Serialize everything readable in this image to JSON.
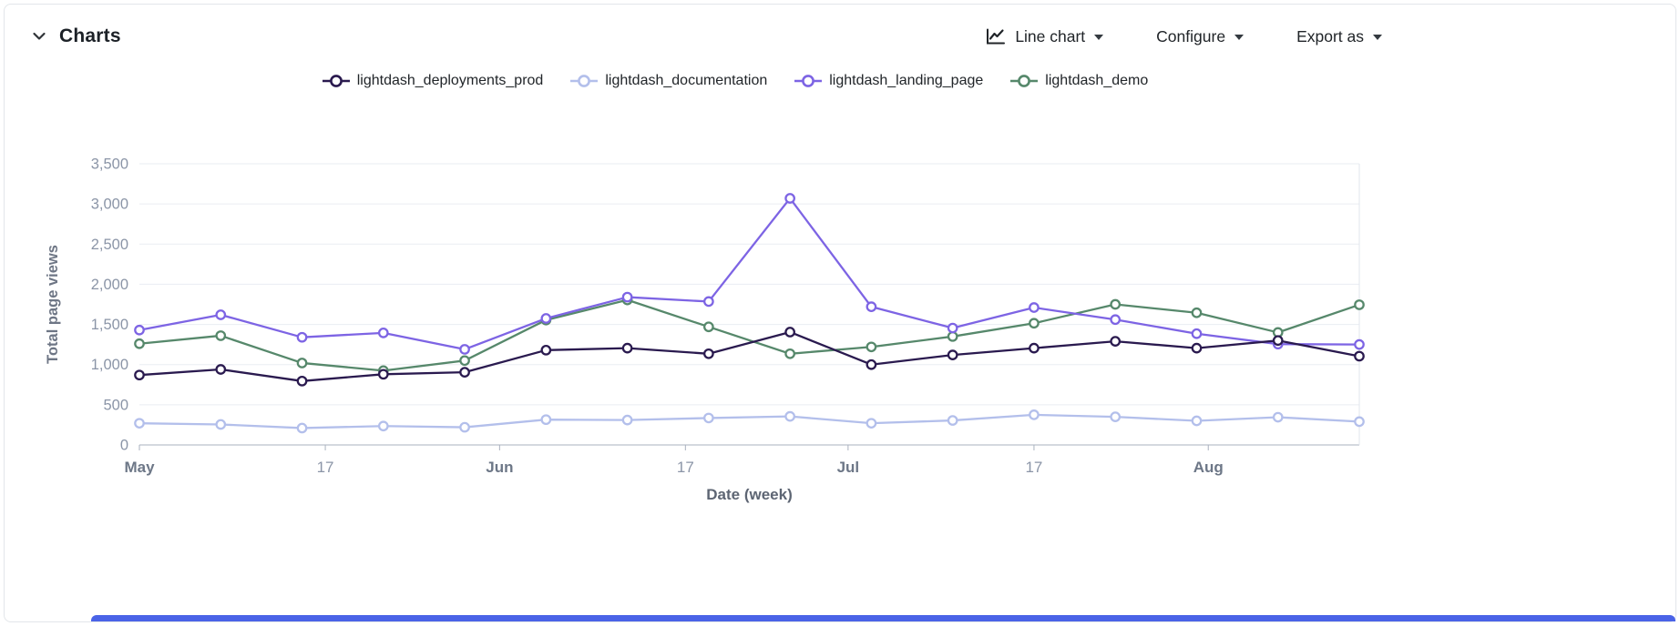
{
  "panel": {
    "title": "Charts",
    "toolbar": {
      "chart_type_label": "Line chart",
      "configure_label": "Configure",
      "export_label": "Export as"
    }
  },
  "chart_data": {
    "type": "line",
    "title": "",
    "xlabel": "Date (week)",
    "ylabel": "Total page views",
    "ylim": [
      0,
      3500
    ],
    "grid": true,
    "legend_position": "top",
    "y_ticks": [
      0,
      500,
      1000,
      1500,
      2000,
      2500,
      3000,
      3500
    ],
    "x_ticks": [
      {
        "label": "May",
        "pos": 0,
        "bold": true
      },
      {
        "label": "17",
        "pos": 2.286,
        "bold": false
      },
      {
        "label": "Jun",
        "pos": 4.429,
        "bold": true
      },
      {
        "label": "17",
        "pos": 6.714,
        "bold": false
      },
      {
        "label": "Jul",
        "pos": 8.714,
        "bold": true
      },
      {
        "label": "17",
        "pos": 11.0,
        "bold": false
      },
      {
        "label": "Aug",
        "pos": 13.143,
        "bold": true
      }
    ],
    "x_unit": "week-index",
    "series": [
      {
        "name": "lightdash_deployments_prod",
        "color": "#2a1a4f",
        "values": [
          870,
          940,
          795,
          880,
          905,
          1180,
          1205,
          1135,
          1405,
          1000,
          1120,
          1205,
          1290,
          1205,
          1300,
          1105
        ]
      },
      {
        "name": "lightdash_documentation",
        "color": "#b3bfeb",
        "values": [
          270,
          255,
          210,
          235,
          220,
          315,
          310,
          335,
          355,
          270,
          305,
          375,
          350,
          300,
          345,
          290
        ]
      },
      {
        "name": "lightdash_landing_page",
        "color": "#7d64e4",
        "values": [
          1430,
          1620,
          1340,
          1395,
          1190,
          1575,
          1840,
          1785,
          3070,
          1720,
          1455,
          1710,
          1560,
          1385,
          1255,
          1250
        ]
      },
      {
        "name": "lightdash_demo",
        "color": "#56886b",
        "values": [
          1260,
          1360,
          1020,
          925,
          1050,
          1555,
          1805,
          1470,
          1135,
          1220,
          1350,
          1515,
          1750,
          1645,
          1400,
          1745
        ]
      }
    ]
  }
}
